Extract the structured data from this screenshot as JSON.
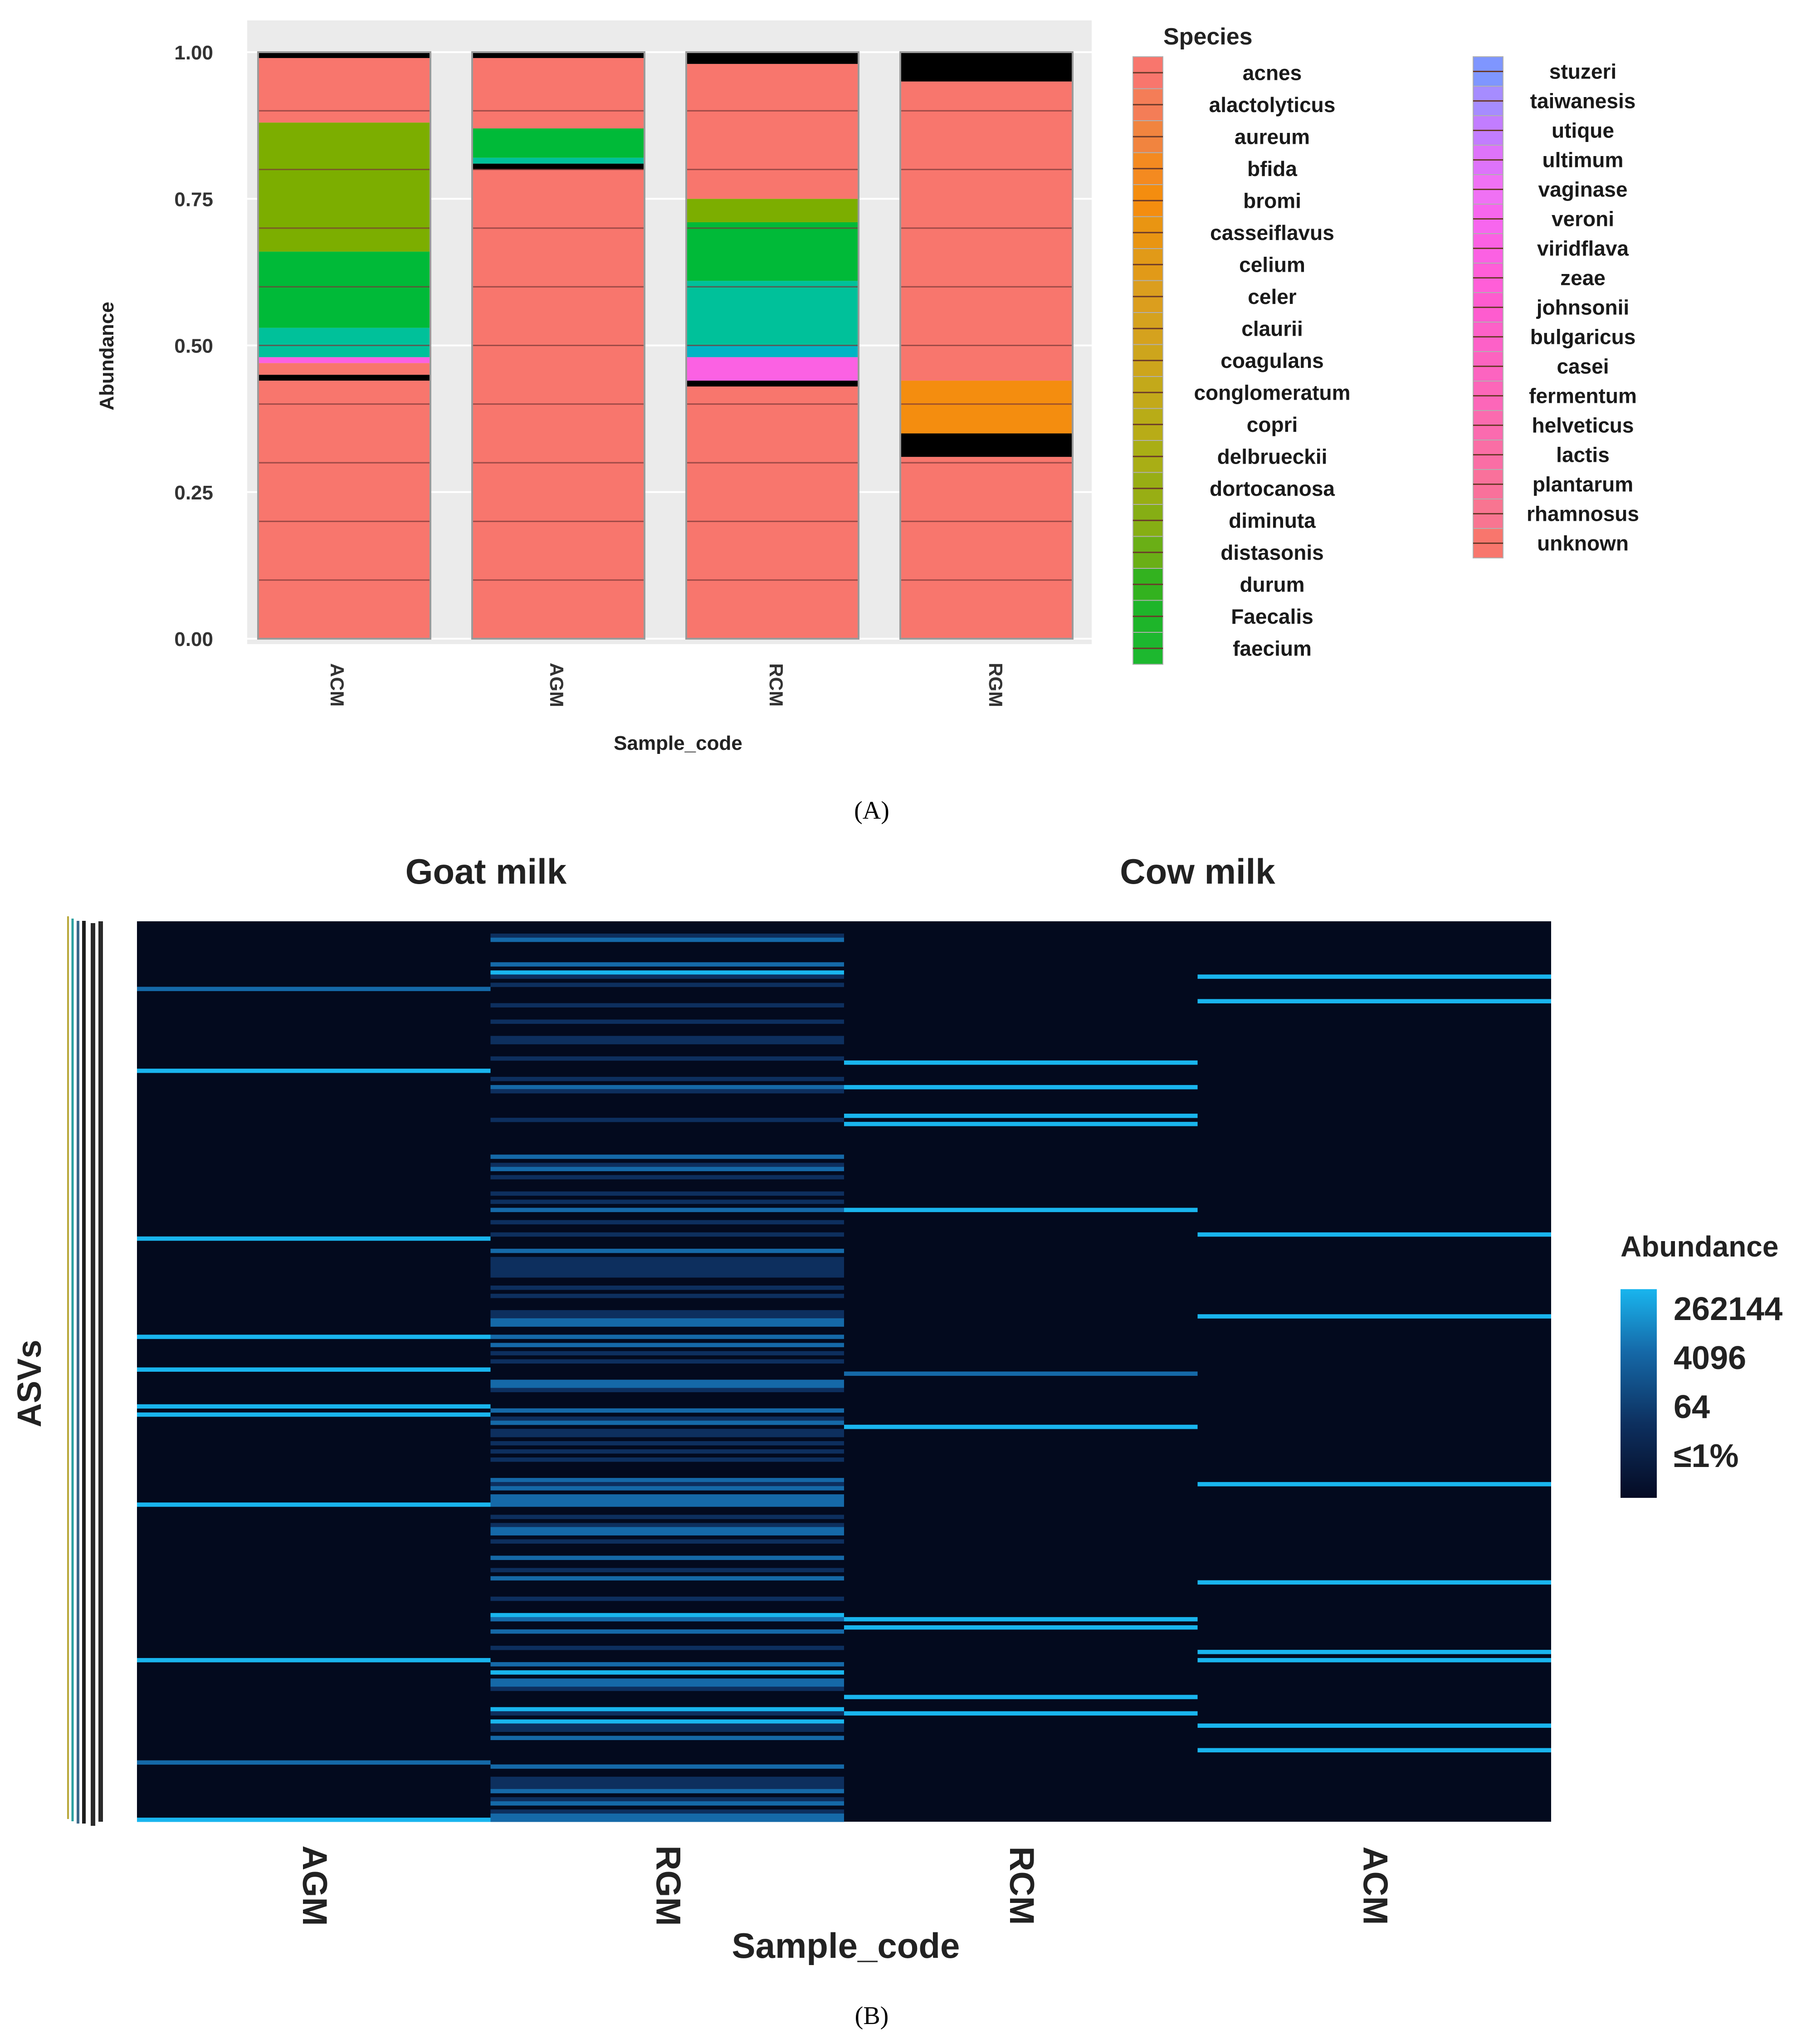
{
  "panel_a": {
    "label": "(A)",
    "chart_data": {
      "type": "bar",
      "stacked": true,
      "title": "",
      "xlabel": "Sample_code",
      "ylabel": "Abundance",
      "ylim": [
        0,
        1
      ],
      "yticks": [
        "0.00",
        "0.25",
        "0.50",
        "0.75",
        "1.00"
      ],
      "categories": [
        "ACM",
        "AGM",
        "RCM",
        "RGM"
      ],
      "legend_title": "Species",
      "legend_position": "right",
      "species": [
        {
          "name": "acnes",
          "color": "#F8766D"
        },
        {
          "name": "alactolyticus",
          "color": "#F47D57"
        },
        {
          "name": "aureum",
          "color": "#F1843F"
        },
        {
          "name": "bfida",
          "color": "#F48A20"
        },
        {
          "name": "bromi",
          "color": "#F48D0F"
        },
        {
          "name": "casseiflavus",
          "color": "#E99512"
        },
        {
          "name": "celium",
          "color": "#E19A18"
        },
        {
          "name": "celer",
          "color": "#DB9E1E"
        },
        {
          "name": "claurii",
          "color": "#D5A21E"
        },
        {
          "name": "coagulans",
          "color": "#CDA51C"
        },
        {
          "name": "conglomeratum",
          "color": "#C3A91A"
        },
        {
          "name": "copri",
          "color": "#B8AC17"
        },
        {
          "name": "delbrueckii",
          "color": "#A9AE15"
        },
        {
          "name": "dortocanosa",
          "color": "#98AE14"
        },
        {
          "name": "diminuta",
          "color": "#86AE14"
        },
        {
          "name": "distasonis",
          "color": "#6AAF16"
        },
        {
          "name": "durum",
          "color": "#33B21F"
        },
        {
          "name": "Faecalis",
          "color": "#1EB52A"
        },
        {
          "name": "faecium",
          "color": "#1DB82F"
        },
        {
          "name": "stuzeri",
          "color": "#7F96FF"
        },
        {
          "name": "taiwanesis",
          "color": "#A68CFF"
        },
        {
          "name": "utique",
          "color": "#C27DFF"
        },
        {
          "name": "ultimum",
          "color": "#DE73FA"
        },
        {
          "name": "vaginase",
          "color": "#F071F4"
        },
        {
          "name": "veroni",
          "color": "#F766EE"
        },
        {
          "name": "viridflava",
          "color": "#FB61E3"
        },
        {
          "name": "zeae",
          "color": "#FF5ED8"
        },
        {
          "name": "johnsonii",
          "color": "#FE5CCF"
        },
        {
          "name": "bulgaricus",
          "color": "#FD61C8"
        },
        {
          "name": "casei",
          "color": "#FC64C0"
        },
        {
          "name": "fermentum",
          "color": "#FC67B9"
        },
        {
          "name": "helveticus",
          "color": "#FB6BAF"
        },
        {
          "name": "lactis",
          "color": "#FA6EA5"
        },
        {
          "name": "plantarum",
          "color": "#F9719B"
        },
        {
          "name": "rhamnosus",
          "color": "#F87591"
        },
        {
          "name": "unknown",
          "color": "#F8766D"
        }
      ],
      "series": [
        {
          "category": "ACM",
          "segments": [
            {
              "value": 0.44,
              "color": "#F8766D"
            },
            {
              "value": 0.01,
              "color": "#000000"
            },
            {
              "value": 0.02,
              "color": "#F8766D"
            },
            {
              "value": 0.01,
              "color": "#FB61E3"
            },
            {
              "value": 0.05,
              "color": "#00C19A"
            },
            {
              "value": 0.13,
              "color": "#00BA38"
            },
            {
              "value": 0.22,
              "color": "#7CAE00"
            },
            {
              "value": 0.11,
              "color": "#F8766D"
            },
            {
              "value": 0.01,
              "color": "#000000"
            }
          ]
        },
        {
          "category": "AGM",
          "segments": [
            {
              "value": 0.8,
              "color": "#F8766D"
            },
            {
              "value": 0.01,
              "color": "#000000"
            },
            {
              "value": 0.01,
              "color": "#00C19A"
            },
            {
              "value": 0.05,
              "color": "#00BA38"
            },
            {
              "value": 0.12,
              "color": "#F8766D"
            },
            {
              "value": 0.01,
              "color": "#000000"
            }
          ]
        },
        {
          "category": "RCM",
          "segments": [
            {
              "value": 0.43,
              "color": "#F8766D"
            },
            {
              "value": 0.01,
              "color": "#000000"
            },
            {
              "value": 0.04,
              "color": "#FB61E3"
            },
            {
              "value": 0.02,
              "color": "#00B4C4"
            },
            {
              "value": 0.11,
              "color": "#00C19A"
            },
            {
              "value": 0.1,
              "color": "#00BA38"
            },
            {
              "value": 0.04,
              "color": "#7CAE00"
            },
            {
              "value": 0.23,
              "color": "#F8766D"
            },
            {
              "value": 0.02,
              "color": "#000000"
            }
          ]
        },
        {
          "category": "RGM",
          "segments": [
            {
              "value": 0.31,
              "color": "#F8766D"
            },
            {
              "value": 0.04,
              "color": "#000000"
            },
            {
              "value": 0.09,
              "color": "#F48D0F"
            },
            {
              "value": 0.51,
              "color": "#F8766D"
            },
            {
              "value": 0.05,
              "color": "#000000"
            }
          ]
        }
      ]
    }
  },
  "panel_b": {
    "label": "(B)",
    "chart_data": {
      "type": "heatmap",
      "xlabel": "Sample_code",
      "ylabel": "ASVs",
      "columns": [
        "AGM",
        "RGM",
        "RCM",
        "ACM"
      ],
      "groups": [
        {
          "label": "Goat milk",
          "span": [
            "AGM",
            "RGM"
          ]
        },
        {
          "label": "Cow milk",
          "span": [
            "RCM",
            "ACM"
          ]
        }
      ],
      "legend_title": "Abundance",
      "legend_labels": [
        "262144",
        "4096",
        "64",
        "≤1%"
      ],
      "legend_position": "right",
      "colorscale": [
        "#050B24",
        "#0D2F5E",
        "#1569A8",
        "#19B5EE"
      ]
    }
  }
}
